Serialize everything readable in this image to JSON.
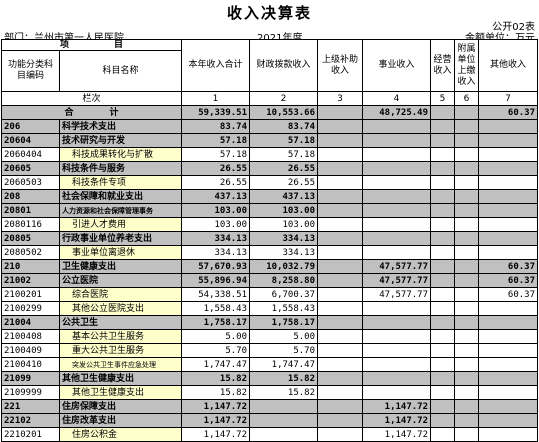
{
  "header": {
    "title": "收入决算表",
    "form_code": "公开02表",
    "department": "部门：兰州市第一人民医院",
    "year": "2021年度",
    "unit": "金额单位：万元"
  },
  "columns": {
    "item": "项　　　　　目",
    "class_code": "功能分类科目编码",
    "subject_name": "科目名称",
    "col1": "本年收入合计",
    "col2": "财政拨款收入",
    "col3": "上级补助收入",
    "col4": "事业收入",
    "col5": "经营收入",
    "col6": "附属单位上缴收入",
    "col7": "其他收入",
    "row_label": "栏次",
    "n1": "1",
    "n2": "2",
    "n3": "3",
    "n4": "4",
    "n5": "5",
    "n6": "6",
    "n7": "7"
  },
  "total": {
    "label": "合　　　　计",
    "c1": "59,339.51",
    "c2": "10,553.66",
    "c3": "",
    "c4": "48,725.49",
    "c5": "",
    "c6": "",
    "c7": "60.37"
  },
  "rows": [
    {
      "code": "206",
      "name": "科学技术支出",
      "c1": "83.74",
      "c2": "83.74",
      "c3": "",
      "c4": "",
      "c5": "",
      "c6": "",
      "c7": ""
    },
    {
      "code": "20604",
      "name": "技术研究与开发",
      "c1": "57.18",
      "c2": "57.18",
      "c3": "",
      "c4": "",
      "c5": "",
      "c6": "",
      "c7": ""
    },
    {
      "code": "2060404",
      "name": "科技成果转化与扩散",
      "c1": "57.18",
      "c2": "57.18",
      "c3": "",
      "c4": "",
      "c5": "",
      "c6": "",
      "c7": ""
    },
    {
      "code": "20605",
      "name": "科技条件与服务",
      "c1": "26.55",
      "c2": "26.55",
      "c3": "",
      "c4": "",
      "c5": "",
      "c6": "",
      "c7": ""
    },
    {
      "code": "2060503",
      "name": "科技条件专项",
      "c1": "26.55",
      "c2": "26.55",
      "c3": "",
      "c4": "",
      "c5": "",
      "c6": "",
      "c7": ""
    },
    {
      "code": "208",
      "name": "社会保障和就业支出",
      "c1": "437.13",
      "c2": "437.13",
      "c3": "",
      "c4": "",
      "c5": "",
      "c6": "",
      "c7": ""
    },
    {
      "code": "20801",
      "name": "人力资源和社会保障管理事务",
      "c1": "103.00",
      "c2": "103.00",
      "c3": "",
      "c4": "",
      "c5": "",
      "c6": "",
      "c7": ""
    },
    {
      "code": "2080116",
      "name": "引进人才费用",
      "c1": "103.00",
      "c2": "103.00",
      "c3": "",
      "c4": "",
      "c5": "",
      "c6": "",
      "c7": ""
    },
    {
      "code": "20805",
      "name": "行政事业单位养老支出",
      "c1": "334.13",
      "c2": "334.13",
      "c3": "",
      "c4": "",
      "c5": "",
      "c6": "",
      "c7": ""
    },
    {
      "code": "2080502",
      "name": "事业单位离退休",
      "c1": "334.13",
      "c2": "334.13",
      "c3": "",
      "c4": "",
      "c5": "",
      "c6": "",
      "c7": ""
    },
    {
      "code": "210",
      "name": "卫生健康支出",
      "c1": "57,670.93",
      "c2": "10,032.79",
      "c3": "",
      "c4": "47,577.77",
      "c5": "",
      "c6": "",
      "c7": "60.37"
    },
    {
      "code": "21002",
      "name": "公立医院",
      "c1": "55,896.94",
      "c2": "8,258.80",
      "c3": "",
      "c4": "47,577.77",
      "c5": "",
      "c6": "",
      "c7": "60.37"
    },
    {
      "code": "2100201",
      "name": "综合医院",
      "c1": "54,338.51",
      "c2": "6,700.37",
      "c3": "",
      "c4": "47,577.77",
      "c5": "",
      "c6": "",
      "c7": "60.37"
    },
    {
      "code": "2100299",
      "name": "其他公立医院支出",
      "c1": "1,558.43",
      "c2": "1,558.43",
      "c3": "",
      "c4": "",
      "c5": "",
      "c6": "",
      "c7": ""
    },
    {
      "code": "21004",
      "name": "公共卫生",
      "c1": "1,758.17",
      "c2": "1,758.17",
      "c3": "",
      "c4": "",
      "c5": "",
      "c6": "",
      "c7": ""
    },
    {
      "code": "2100408",
      "name": "基本公共卫生服务",
      "c1": "5.00",
      "c2": "5.00",
      "c3": "",
      "c4": "",
      "c5": "",
      "c6": "",
      "c7": ""
    },
    {
      "code": "2100409",
      "name": "重大公共卫生服务",
      "c1": "5.70",
      "c2": "5.70",
      "c3": "",
      "c4": "",
      "c5": "",
      "c6": "",
      "c7": ""
    },
    {
      "code": "2100410",
      "name": "突发公共卫生事件应急处理",
      "c1": "1,747.47",
      "c2": "1,747.47",
      "c3": "",
      "c4": "",
      "c5": "",
      "c6": "",
      "c7": ""
    },
    {
      "code": "21099",
      "name": "其他卫生健康支出",
      "c1": "15.82",
      "c2": "15.82",
      "c3": "",
      "c4": "",
      "c5": "",
      "c6": "",
      "c7": ""
    },
    {
      "code": "2109999",
      "name": "其他卫生健康支出",
      "c1": "15.82",
      "c2": "15.82",
      "c3": "",
      "c4": "",
      "c5": "",
      "c6": "",
      "c7": ""
    },
    {
      "code": "221",
      "name": "住房保障支出",
      "c1": "1,147.72",
      "c2": "",
      "c3": "",
      "c4": "1,147.72",
      "c5": "",
      "c6": "",
      "c7": ""
    },
    {
      "code": "22102",
      "name": "住房改革支出",
      "c1": "1,147.72",
      "c2": "",
      "c3": "",
      "c4": "1,147.72",
      "c5": "",
      "c6": "",
      "c7": ""
    },
    {
      "code": "2210201",
      "name": "住房公积金",
      "c1": "1,147.72",
      "c2": "",
      "c3": "",
      "c4": "1,147.72",
      "c5": "",
      "c6": "",
      "c7": ""
    }
  ]
}
